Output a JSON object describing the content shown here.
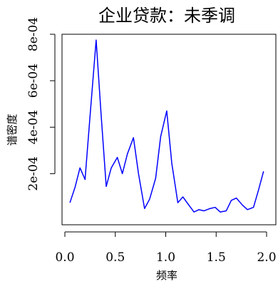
{
  "chart_data": {
    "type": "line",
    "title": "企业贷款：未季调",
    "xlabel": "频率",
    "ylabel": "谱密度",
    "xlim": [
      0.0,
      2.0
    ],
    "ylim": [
      -2e-05,
      0.0008
    ],
    "x_ticks": [
      0.0,
      0.5,
      1.0,
      1.5,
      2.0
    ],
    "x_tick_labels": [
      "0.0",
      "0.5",
      "1.0",
      "1.5",
      "2.0"
    ],
    "y_ticks": [
      0.0002,
      0.0004,
      0.0006,
      0.0008
    ],
    "y_tick_labels": [
      "2e-04",
      "4e-04",
      "6e-04",
      "8e-04"
    ],
    "grid": false,
    "series": [
      {
        "color": "#0000ff",
        "x": [
          0.05,
          0.1,
          0.15,
          0.2,
          0.25,
          0.31,
          0.36,
          0.41,
          0.46,
          0.52,
          0.57,
          0.62,
          0.68,
          0.73,
          0.79,
          0.84,
          0.9,
          0.95,
          1.01,
          1.06,
          1.12,
          1.17,
          1.22,
          1.28,
          1.33,
          1.38,
          1.44,
          1.49,
          1.54,
          1.6,
          1.65,
          1.7,
          1.76,
          1.81,
          1.87,
          1.92,
          1.97
        ],
        "y": [
          7.5e-05,
          0.00014,
          0.000225,
          0.000175,
          0.00045,
          0.000775,
          0.00045,
          0.000145,
          0.000225,
          0.00027,
          0.0002,
          0.000285,
          0.000355,
          0.0002,
          5e-05,
          9e-05,
          0.00018,
          0.00036,
          0.00047,
          0.000245,
          7.5e-05,
          0.0001,
          7e-05,
          3.5e-05,
          4.5e-05,
          4e-05,
          5e-05,
          5.5e-05,
          3.5e-05,
          4e-05,
          8.5e-05,
          9.5e-05,
          6.5e-05,
          4.5e-05,
          5.5e-05,
          0.00013,
          0.00021
        ]
      }
    ]
  }
}
